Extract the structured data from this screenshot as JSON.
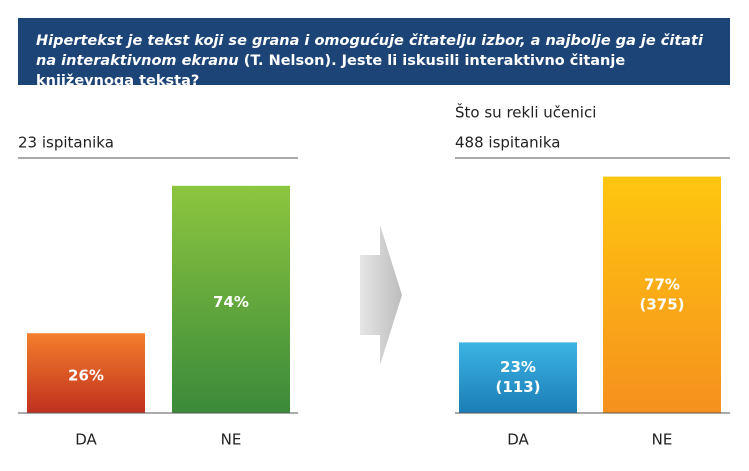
{
  "header": {
    "quote": "Hipertekst je tekst koji se grana i omogućuje čitatelju izbor, a najbolje ga je čitati na interaktivnom ekranu",
    "question": "(T. Nelson). Jeste li iskusili interaktivno čitanje književnoga teksta?"
  },
  "chart_data": [
    {
      "type": "bar",
      "subtitle": "23 ispitanika",
      "categories": [
        "DA",
        "NE"
      ],
      "values": [
        26,
        74
      ],
      "value_labels": [
        "26%",
        "74%"
      ],
      "colors": [
        {
          "top": "#f47f2c",
          "bottom": "#c0301e"
        },
        {
          "top": "#8dc63f",
          "bottom": "#3a8a3a"
        }
      ]
    },
    {
      "type": "bar",
      "title": "Što su rekli učenici",
      "subtitle": "488 ispitanika",
      "categories": [
        "DA",
        "NE"
      ],
      "values": [
        23,
        77
      ],
      "value_labels": [
        "23%",
        "77%"
      ],
      "count_labels": [
        "(113)",
        "(375)"
      ],
      "colors": [
        {
          "top": "#3cb4e4",
          "bottom": "#1b7db6"
        },
        {
          "top": "#ffc60f",
          "bottom": "#f5901e"
        }
      ]
    }
  ]
}
